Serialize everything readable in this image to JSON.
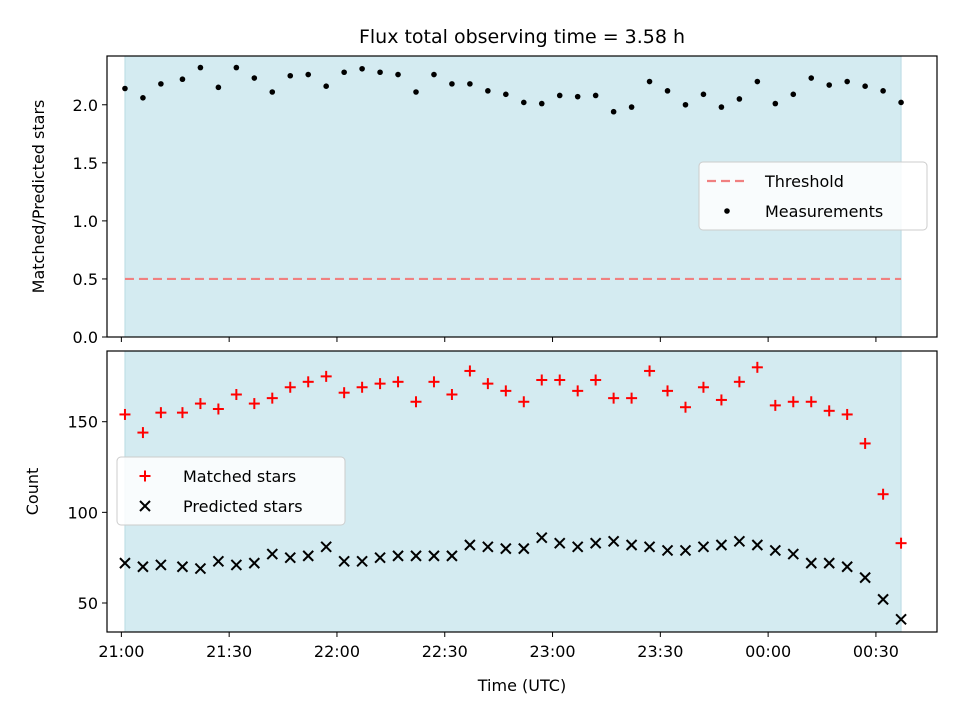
{
  "chart_data": [
    {
      "type": "scatter",
      "title": "Flux total observing time = 3.58 h",
      "xlabel": "",
      "ylabel": "Matched/Predicted stars",
      "ylim": [
        0,
        2.42
      ],
      "yticks": [
        "0.0",
        "0.5",
        "1.0",
        "1.5",
        "2.0"
      ],
      "shaded_span": [
        "21:01",
        "00:37"
      ],
      "shade_color": "#d4ebf1",
      "legend_placement": "center-right",
      "series": [
        {
          "name": "Threshold",
          "style": "dashed-line",
          "color": "#f08080",
          "x": [
            "21:01",
            "00:37"
          ],
          "values": [
            0.5,
            0.5
          ]
        },
        {
          "name": "Measurements",
          "style": "dot",
          "color": "#000000",
          "x": [
            "21:01",
            "21:06",
            "21:11",
            "21:17",
            "21:22",
            "21:27",
            "21:32",
            "21:37",
            "21:42",
            "21:47",
            "21:52",
            "21:57",
            "22:02",
            "22:07",
            "22:12",
            "22:17",
            "22:22",
            "22:27",
            "22:32",
            "22:37",
            "22:42",
            "22:47",
            "22:52",
            "22:57",
            "23:02",
            "23:07",
            "23:12",
            "23:17",
            "23:22",
            "23:27",
            "23:32",
            "23:37",
            "23:42",
            "23:47",
            "23:52",
            "23:57",
            "00:02",
            "00:07",
            "00:12",
            "00:17",
            "00:22",
            "00:27",
            "00:32",
            "00:37"
          ],
          "values": [
            2.14,
            2.06,
            2.18,
            2.22,
            2.32,
            2.15,
            2.32,
            2.23,
            2.11,
            2.25,
            2.26,
            2.16,
            2.28,
            2.31,
            2.28,
            2.26,
            2.11,
            2.26,
            2.18,
            2.18,
            2.12,
            2.09,
            2.02,
            2.01,
            2.08,
            2.07,
            2.08,
            1.94,
            1.98,
            2.2,
            2.12,
            2.0,
            2.09,
            1.98,
            2.05,
            2.2,
            2.01,
            2.09,
            2.23,
            2.17,
            2.2,
            2.16,
            2.12,
            2.02
          ]
        }
      ]
    },
    {
      "type": "scatter",
      "title": "",
      "xlabel": "Time (UTC)",
      "ylabel": "Count",
      "ylim": [
        34,
        189
      ],
      "yticks": [
        "50",
        "100",
        "150"
      ],
      "xticks": [
        "21:00",
        "21:30",
        "22:00",
        "22:30",
        "23:00",
        "23:30",
        "00:00",
        "00:30"
      ],
      "xlim": [
        "20:56",
        "00:47"
      ],
      "shaded_span": [
        "21:01",
        "00:37"
      ],
      "legend_placement": "center-left",
      "series": [
        {
          "name": "Matched stars",
          "style": "plus",
          "color": "#ff0000",
          "x": [
            "21:01",
            "21:06",
            "21:11",
            "21:17",
            "21:22",
            "21:27",
            "21:32",
            "21:37",
            "21:42",
            "21:47",
            "21:52",
            "21:57",
            "22:02",
            "22:07",
            "22:12",
            "22:17",
            "22:22",
            "22:27",
            "22:32",
            "22:37",
            "22:42",
            "22:47",
            "22:52",
            "22:57",
            "23:02",
            "23:07",
            "23:12",
            "23:17",
            "23:22",
            "23:27",
            "23:32",
            "23:37",
            "23:42",
            "23:47",
            "23:52",
            "23:57",
            "00:02",
            "00:07",
            "00:12",
            "00:17",
            "00:22",
            "00:27",
            "00:32",
            "00:37"
          ],
          "values": [
            154,
            144,
            155,
            155,
            160,
            157,
            165,
            160,
            163,
            169,
            172,
            175,
            166,
            169,
            171,
            172,
            161,
            172,
            165,
            178,
            171,
            167,
            161,
            173,
            173,
            167,
            173,
            163,
            163,
            178,
            167,
            158,
            169,
            162,
            172,
            180,
            159,
            161,
            161,
            156,
            154,
            138,
            110,
            83
          ]
        },
        {
          "name": "Predicted stars",
          "style": "cross",
          "color": "#000000",
          "x": [
            "21:01",
            "21:06",
            "21:11",
            "21:17",
            "21:22",
            "21:27",
            "21:32",
            "21:37",
            "21:42",
            "21:47",
            "21:52",
            "21:57",
            "22:02",
            "22:07",
            "22:12",
            "22:17",
            "22:22",
            "22:27",
            "22:32",
            "22:37",
            "22:42",
            "22:47",
            "22:52",
            "22:57",
            "23:02",
            "23:07",
            "23:12",
            "23:17",
            "23:22",
            "23:27",
            "23:32",
            "23:37",
            "23:42",
            "23:47",
            "23:52",
            "23:57",
            "00:02",
            "00:07",
            "00:12",
            "00:17",
            "00:22",
            "00:27",
            "00:32",
            "00:37"
          ],
          "values": [
            72,
            70,
            71,
            70,
            69,
            73,
            71,
            72,
            77,
            75,
            76,
            81,
            73,
            73,
            75,
            76,
            76,
            76,
            76,
            82,
            81,
            80,
            80,
            86,
            83,
            81,
            83,
            84,
            82,
            81,
            79,
            79,
            81,
            82,
            84,
            82,
            79,
            77,
            72,
            72,
            70,
            64,
            52,
            41
          ]
        }
      ]
    }
  ]
}
